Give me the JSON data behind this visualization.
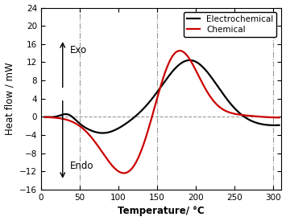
{
  "title": "",
  "xlabel": "Temperature/ °C",
  "ylabel": "Heat flow / mW",
  "xlim": [
    0,
    310
  ],
  "ylim": [
    -16,
    24
  ],
  "yticks": [
    -16,
    -12,
    -8,
    -4,
    0,
    4,
    8,
    12,
    16,
    20,
    24
  ],
  "xticks": [
    0,
    50,
    100,
    150,
    200,
    250,
    300
  ],
  "vlines": [
    50,
    150,
    300
  ],
  "hline": 0,
  "exo_label": "Exo",
  "endo_label": "Endo",
  "electrochemical_color": "#000000",
  "chemical_color": "#cc0000",
  "background_color": "#ffffff",
  "legend_labels": [
    "Electrochemical",
    "Chemical"
  ]
}
